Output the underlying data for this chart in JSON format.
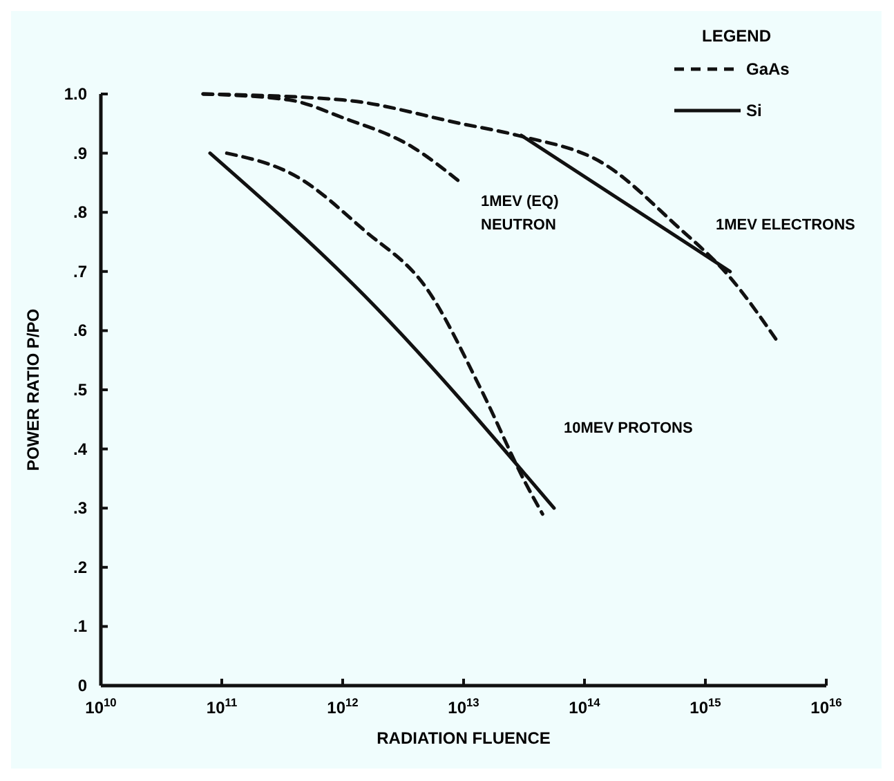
{
  "chart_data": {
    "type": "line",
    "xlabel": "RADIATION FLUENCE",
    "ylabel": "POWER RATIO P/PO",
    "legend_title": "LEGEND",
    "legend": "top right",
    "log": "x",
    "marker": "none",
    "xlim": [
      10000000000.0,
      1e+16
    ],
    "ylim": [
      0,
      1.0
    ],
    "xticks": [
      {
        "value": 10000000000.0,
        "label": "10$^{10}$"
      },
      {
        "value": 100000000000.0,
        "label": "10$^{11}$"
      },
      {
        "value": 1000000000000.0,
        "label": "10$^{12}$"
      },
      {
        "value": 10000000000000.0,
        "label": "10$^{13}$"
      },
      {
        "value": 100000000000000.0,
        "label": "10$^{14}$"
      },
      {
        "value": 1000000000000000.0,
        "label": "10$^{15}$"
      },
      {
        "value": 1e+16,
        "label": "10$^{16}$"
      }
    ],
    "yticks": [
      0,
      {
        "value": 0.1,
        "label": ".1"
      },
      {
        "value": 0.2,
        "label": ".2"
      },
      {
        "value": 0.3,
        "label": ".3"
      },
      {
        "value": 0.4,
        "label": ".4"
      },
      {
        "value": 0.5,
        "label": ".5"
      },
      {
        "value": 0.6,
        "label": ".6"
      },
      {
        "value": 0.7,
        "label": ".7"
      },
      {
        "value": 0.8,
        "label": ".8"
      },
      {
        "value": 0.9,
        "label": ".9"
      },
      {
        "value": 1.0,
        "label": "1.0"
      }
    ],
    "series": [
      {
        "name": "GaAs",
        "color": "#111111",
        "line_style": "dashed",
        "x": [
          70000000000.0,
          360000000000.0,
          1000000000000.0,
          3800000000000.0,
          9500000000000.0
        ],
        "values": [
          1.0,
          0.99,
          0.96,
          0.91,
          0.85
        ]
      },
      {
        "color": "#111111",
        "line_style": "dashed",
        "x": [
          70000000000.0,
          1000000000000.0,
          9500000000000.0,
          28000000000000.0,
          150000000000000.0,
          560000000000000.0,
          1600000000000000.0,
          4000000000000000.0
        ],
        "values": [
          1.0,
          0.99,
          0.95,
          0.93,
          0.88,
          0.78,
          0.69,
          0.58
        ]
      },
      {
        "name": "Si",
        "color": "#111111",
        "line_style": "solid",
        "x": [
          30000000000000.0,
          1600000000000000.0
        ],
        "values": [
          0.93,
          0.7
        ]
      },
      {
        "color": "#111111",
        "line_style": "dashed",
        "x": [
          110000000000.0,
          420000000000.0,
          1500000000000.0,
          5000000000000.0,
          14000000000000.0,
          33000000000000.0,
          45000000000000.0
        ],
        "values": [
          0.9,
          0.86,
          0.77,
          0.67,
          0.5,
          0.34,
          0.29
        ]
      },
      {
        "color": "#111111",
        "line_style": "solid",
        "x": [
          80000000000.0,
          1500000000000.0,
          56000000000000.0
        ],
        "values": [
          0.9,
          0.66,
          0.3
        ]
      }
    ],
    "annotations": [
      "1MEV (EQ)",
      "NEUTRON",
      "1MEV ELECTRONS",
      "10MEV PROTONS"
    ]
  }
}
